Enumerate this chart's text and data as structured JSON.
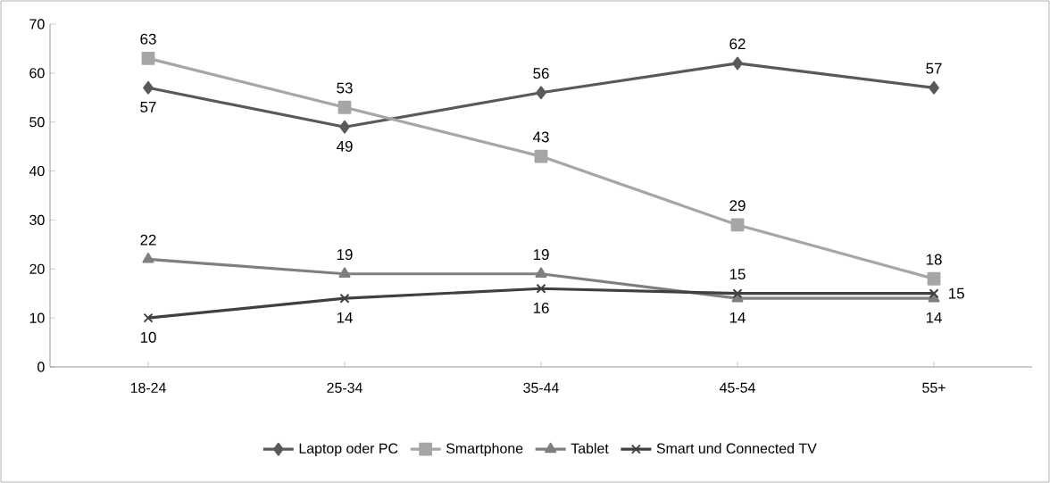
{
  "chart_data": {
    "type": "line",
    "categories": [
      "18-24",
      "25-34",
      "35-44",
      "45-54",
      "55+"
    ],
    "series": [
      {
        "name": "Laptop oder PC",
        "color": "#595959",
        "marker": "diamond",
        "values": [
          57,
          49,
          56,
          62,
          57
        ]
      },
      {
        "name": "Smartphone",
        "color": "#a6a6a6",
        "marker": "square",
        "values": [
          63,
          53,
          43,
          29,
          18
        ]
      },
      {
        "name": "Tablet",
        "color": "#7f7f7f",
        "marker": "triangle",
        "values": [
          22,
          19,
          19,
          14,
          14
        ]
      },
      {
        "name": "Smart und Connected TV",
        "color": "#404040",
        "marker": "cross",
        "values": [
          10,
          14,
          16,
          15,
          15
        ]
      }
    ],
    "ylim": [
      0,
      70
    ],
    "yticks": [
      0,
      10,
      20,
      30,
      40,
      50,
      60,
      70
    ],
    "grid": false,
    "legend": "bottom",
    "data_labels": true
  }
}
